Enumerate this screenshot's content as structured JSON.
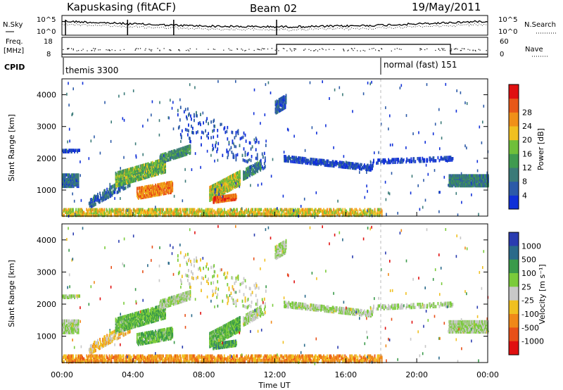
{
  "header": {
    "station": "Kapuskasing (fitACF)",
    "beam": "Beam 02",
    "date": "19/May/2011"
  },
  "top_panels": {
    "nsky_label": "N.Sky",
    "nsearch_label": "N.Search",
    "noise_ticks": [
      "10^5",
      "10^0"
    ],
    "freq_label": "Freq.",
    "freq_unit": "[MHz]",
    "freq_ticks": [
      "18",
      "8"
    ],
    "nave_label": "Nave",
    "nave_ticks": [
      "60",
      "0"
    ],
    "cpid_label": "CPID",
    "cpid_modes": [
      {
        "label": "themis 3300",
        "start": "00:00",
        "end": "18:00"
      },
      {
        "label": "normal (fast) 151",
        "start": "18:00",
        "end": "24:00"
      }
    ]
  },
  "chart_data": [
    {
      "type": "heatmap",
      "title": "",
      "xlabel": "",
      "ylabel": "Slant Range [km]",
      "xlim": [
        0,
        24
      ],
      "ylim": [
        180,
        4500
      ],
      "yticks": [
        1000,
        2000,
        3000,
        4000
      ],
      "colorbar": {
        "label": "Power [dB]",
        "ticks": [
          4,
          8,
          12,
          16,
          20,
          24,
          28
        ],
        "colors": [
          "#1030d8",
          "#2c5aa8",
          "#3a7a78",
          "#3f9a50",
          "#6fbf3a",
          "#f0c020",
          "#f09018",
          "#e85818",
          "#e01010"
        ]
      }
    },
    {
      "type": "heatmap",
      "title": "",
      "xlabel": "Time UT",
      "ylabel": "Slant Range [km]",
      "xlim": [
        0,
        24
      ],
      "ylim": [
        180,
        4500
      ],
      "yticks": [
        1000,
        2000,
        3000,
        4000
      ],
      "xticks": [
        "00:00",
        "04:00",
        "08:00",
        "12:00",
        "16:00",
        "20:00",
        "00:00"
      ],
      "colorbar": {
        "label": "Velocity [m s⁻¹]",
        "ticks": [
          "1000",
          "500",
          "100",
          "25",
          "-25",
          "-100",
          "-500",
          "-1000"
        ],
        "colors": [
          "#2a3cb0",
          "#2a6a8a",
          "#3a9a4a",
          "#7acb3a",
          "#c8c8c8",
          "#f0c020",
          "#f08818",
          "#e85018",
          "#e01010"
        ]
      }
    }
  ]
}
